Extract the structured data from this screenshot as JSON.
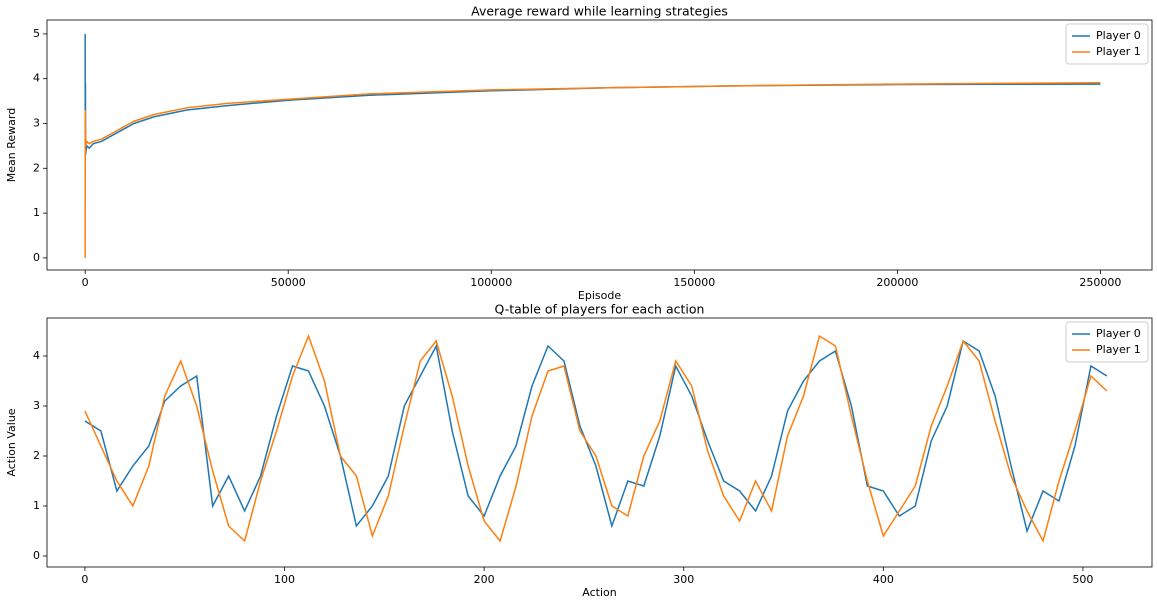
{
  "chart_data": [
    {
      "type": "line",
      "title": "Average reward while learning strategies",
      "xlabel": "Episode",
      "ylabel": "Mean Reward",
      "x": [
        0,
        30,
        60,
        100,
        200,
        400,
        1000,
        2000,
        4000,
        8000,
        12000,
        17000,
        25000,
        35000,
        50000,
        70000,
        100000,
        130000,
        160000,
        200000,
        250000
      ],
      "series": [
        {
          "name": "Player 0",
          "color": "#1f77b4",
          "values": [
            5.0,
            2.1,
            3.9,
            2.3,
            2.4,
            2.5,
            2.45,
            2.55,
            2.6,
            2.8,
            3.0,
            3.15,
            3.3,
            3.4,
            3.52,
            3.63,
            3.73,
            3.8,
            3.84,
            3.87,
            3.88
          ]
        },
        {
          "name": "Player 1",
          "color": "#ff7f0e",
          "values": [
            0,
            3.3,
            2.6,
            2.8,
            2.5,
            2.6,
            2.55,
            2.6,
            2.65,
            2.85,
            3.05,
            3.2,
            3.35,
            3.45,
            3.54,
            3.66,
            3.75,
            3.8,
            3.84,
            3.88,
            3.91
          ]
        }
      ],
      "xlim": [
        -9400,
        262700
      ],
      "ylim": [
        -0.27,
        5.31
      ],
      "xticks": [
        0,
        50000,
        100000,
        150000,
        200000,
        250000
      ],
      "yticks": [
        0,
        1,
        2,
        3,
        4,
        5
      ],
      "legend": "upper right"
    },
    {
      "type": "line",
      "title": "Q-table of players for each action",
      "xlabel": "Action",
      "ylabel": "Action Value",
      "x": [
        0,
        8,
        16,
        24,
        32,
        40,
        48,
        56,
        64,
        72,
        80,
        88,
        96,
        104,
        112,
        120,
        128,
        136,
        144,
        152,
        160,
        168,
        176,
        184,
        192,
        200,
        208,
        216,
        224,
        232,
        240,
        248,
        256,
        264,
        272,
        280,
        288,
        296,
        304,
        312,
        320,
        328,
        336,
        344,
        352,
        360,
        368,
        376,
        384,
        392,
        400,
        408,
        416,
        424,
        432,
        440,
        448,
        456,
        464,
        472,
        480,
        488,
        496,
        504,
        512
      ],
      "series": [
        {
          "name": "Player 0",
          "color": "#1f77b4",
          "values": [
            2.7,
            2.5,
            1.3,
            1.8,
            2.2,
            3.1,
            3.4,
            3.6,
            1.0,
            1.6,
            0.9,
            1.6,
            2.8,
            3.8,
            3.7,
            3.0,
            2.0,
            0.6,
            1.0,
            1.6,
            3.0,
            3.6,
            4.2,
            2.5,
            1.2,
            0.8,
            1.6,
            2.2,
            3.4,
            4.2,
            3.9,
            2.6,
            1.8,
            0.6,
            1.5,
            1.4,
            2.4,
            3.8,
            3.2,
            2.3,
            1.5,
            1.3,
            0.9,
            1.6,
            2.9,
            3.5,
            3.9,
            4.1,
            3.0,
            1.4,
            1.3,
            0.8,
            1.0,
            2.3,
            3.0,
            4.3,
            4.1,
            3.2,
            1.8,
            0.5,
            1.3,
            1.1,
            2.2,
            3.8,
            3.6
          ]
        },
        {
          "name": "Player 1",
          "color": "#ff7f0e",
          "values": [
            2.9,
            2.2,
            1.5,
            1.0,
            1.8,
            3.2,
            3.9,
            3.0,
            1.7,
            0.6,
            0.3,
            1.5,
            2.5,
            3.6,
            4.4,
            3.5,
            2.0,
            1.6,
            0.4,
            1.2,
            2.6,
            3.9,
            4.3,
            3.2,
            1.8,
            0.7,
            0.3,
            1.4,
            2.8,
            3.7,
            3.8,
            2.5,
            2.0,
            1.0,
            0.8,
            2.0,
            2.7,
            3.9,
            3.4,
            2.1,
            1.2,
            0.7,
            1.5,
            0.9,
            2.4,
            3.2,
            4.4,
            4.2,
            2.8,
            1.5,
            0.4,
            0.9,
            1.4,
            2.6,
            3.4,
            4.3,
            3.9,
            2.7,
            1.6,
            0.9,
            0.3,
            1.5,
            2.5,
            3.6,
            3.3
          ]
        }
      ],
      "xlim": [
        -19,
        534.6
      ],
      "ylim": [
        -0.22,
        4.76
      ],
      "xticks": [
        0,
        100,
        200,
        300,
        400,
        500
      ],
      "yticks": [
        0,
        1,
        2,
        3,
        4
      ],
      "legend": "upper right"
    }
  ]
}
